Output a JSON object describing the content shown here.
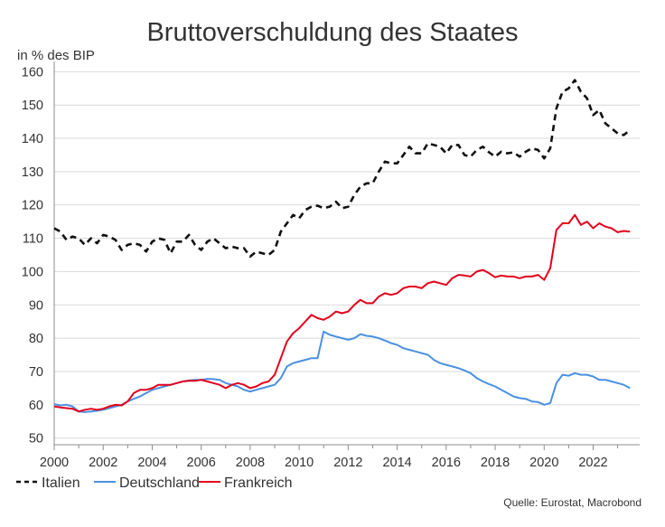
{
  "chart_data": {
    "type": "line",
    "title": "Bruttoverschuldung des Staates",
    "ylabel": "in % des BIP",
    "xlabel": "",
    "xlim": [
      2000,
      2023.9
    ],
    "ylim": [
      48,
      162
    ],
    "yticks": [
      50,
      60,
      70,
      80,
      90,
      100,
      110,
      120,
      130,
      140,
      150,
      160
    ],
    "xticks": [
      2000,
      2002,
      2004,
      2006,
      2008,
      2010,
      2012,
      2014,
      2016,
      2018,
      2020,
      2022
    ],
    "source": "Quelle: Eurostat, Macrobond",
    "series": [
      {
        "name": "Italien",
        "color": "#111111",
        "dash": "dashed",
        "x": [
          2000.0,
          2000.25,
          2000.5,
          2000.75,
          2001.0,
          2001.25,
          2001.5,
          2001.75,
          2002.0,
          2002.25,
          2002.5,
          2002.75,
          2003.0,
          2003.25,
          2003.5,
          2003.75,
          2004.0,
          2004.25,
          2004.5,
          2004.75,
          2005.0,
          2005.25,
          2005.5,
          2005.75,
          2006.0,
          2006.25,
          2006.5,
          2006.75,
          2007.0,
          2007.25,
          2007.5,
          2007.75,
          2008.0,
          2008.25,
          2008.5,
          2008.75,
          2009.0,
          2009.25,
          2009.5,
          2009.75,
          2010.0,
          2010.25,
          2010.5,
          2010.75,
          2011.0,
          2011.25,
          2011.5,
          2011.75,
          2012.0,
          2012.25,
          2012.5,
          2012.75,
          2013.0,
          2013.25,
          2013.5,
          2013.75,
          2014.0,
          2014.25,
          2014.5,
          2014.75,
          2015.0,
          2015.25,
          2015.5,
          2015.75,
          2016.0,
          2016.25,
          2016.5,
          2016.75,
          2017.0,
          2017.25,
          2017.5,
          2017.75,
          2018.0,
          2018.25,
          2018.5,
          2018.75,
          2019.0,
          2019.25,
          2019.5,
          2019.75,
          2020.0,
          2020.25,
          2020.5,
          2020.75,
          2021.0,
          2021.25,
          2021.5,
          2021.75,
          2022.0,
          2022.25,
          2022.5,
          2022.75,
          2023.0,
          2023.25,
          2023.5
        ],
        "values": [
          113,
          112,
          109.5,
          110.5,
          110,
          108,
          110,
          108.5,
          111,
          110.5,
          109.5,
          106.5,
          108,
          108.5,
          108,
          106,
          109,
          110,
          109.5,
          105.5,
          109,
          109,
          111,
          108,
          106.5,
          109,
          110,
          108.5,
          107,
          107.5,
          107,
          107,
          104.5,
          106,
          105.5,
          105,
          106.5,
          112,
          114.5,
          117,
          116,
          118.5,
          119.5,
          119.8,
          119,
          119.5,
          121,
          119,
          119.5,
          123,
          125.5,
          126.5,
          126.5,
          130,
          133,
          132.5,
          132.5,
          135,
          137.5,
          135.5,
          135.5,
          138.5,
          138,
          137.5,
          135.5,
          138,
          138,
          135,
          134.5,
          136.5,
          137.5,
          135.8,
          134.5,
          136,
          135.5,
          135.8,
          134.5,
          136,
          137,
          136.5,
          134,
          137,
          149,
          154,
          155,
          157.5,
          154,
          152,
          147,
          148.5,
          144.5,
          143,
          141.5,
          141,
          142.5
        ]
      },
      {
        "name": "Deutschland",
        "color": "#4a90e2",
        "dash": "solid",
        "x": [
          2000.0,
          2000.25,
          2000.5,
          2000.75,
          2001.0,
          2001.25,
          2001.5,
          2001.75,
          2002.0,
          2002.25,
          2002.5,
          2002.75,
          2003.0,
          2003.25,
          2003.5,
          2003.75,
          2004.0,
          2004.25,
          2004.5,
          2004.75,
          2005.0,
          2005.25,
          2005.5,
          2005.75,
          2006.0,
          2006.25,
          2006.5,
          2006.75,
          2007.0,
          2007.25,
          2007.5,
          2007.75,
          2008.0,
          2008.25,
          2008.5,
          2008.75,
          2009.0,
          2009.25,
          2009.5,
          2009.75,
          2010.0,
          2010.25,
          2010.5,
          2010.75,
          2011.0,
          2011.25,
          2011.5,
          2011.75,
          2012.0,
          2012.25,
          2012.5,
          2012.75,
          2013.0,
          2013.25,
          2013.5,
          2013.75,
          2014.0,
          2014.25,
          2014.5,
          2014.75,
          2015.0,
          2015.25,
          2015.5,
          2015.75,
          2016.0,
          2016.25,
          2016.5,
          2016.75,
          2017.0,
          2017.25,
          2017.5,
          2017.75,
          2018.0,
          2018.25,
          2018.5,
          2018.75,
          2019.0,
          2019.25,
          2019.5,
          2019.75,
          2020.0,
          2020.25,
          2020.5,
          2020.75,
          2021.0,
          2021.25,
          2021.5,
          2021.75,
          2022.0,
          2022.25,
          2022.5,
          2022.75,
          2023.0,
          2023.25,
          2023.5
        ],
        "values": [
          60.2,
          59.8,
          60,
          59.5,
          58,
          57.8,
          58,
          58.2,
          58.5,
          59,
          59.5,
          60,
          61,
          61.8,
          62.5,
          63.5,
          64.5,
          65,
          65.5,
          66,
          66.5,
          67,
          67.3,
          67.5,
          67.5,
          67.8,
          67.7,
          67.5,
          66.5,
          66,
          65.5,
          64.5,
          64,
          64.5,
          65,
          65.5,
          66,
          68,
          71.5,
          72.5,
          73,
          73.5,
          74,
          74,
          82,
          81,
          80.5,
          80,
          79.5,
          80,
          81.2,
          80.7,
          80.5,
          80,
          79.3,
          78.5,
          78,
          77,
          76.5,
          76,
          75.5,
          75,
          73.5,
          72.5,
          72,
          71.5,
          71,
          70.3,
          69.5,
          68,
          67,
          66.2,
          65.5,
          64.5,
          63.5,
          62.5,
          62,
          61.8,
          61,
          60.8,
          60,
          60.5,
          66.5,
          69,
          68.7,
          69.5,
          69,
          69,
          68.5,
          67.5,
          67.5,
          67,
          66.5,
          66,
          65
        ]
      },
      {
        "name": "Frankreich",
        "color": "#e3001b",
        "dash": "solid",
        "x": [
          2000.0,
          2000.25,
          2000.5,
          2000.75,
          2001.0,
          2001.25,
          2001.5,
          2001.75,
          2002.0,
          2002.25,
          2002.5,
          2002.75,
          2003.0,
          2003.25,
          2003.5,
          2003.75,
          2004.0,
          2004.25,
          2004.5,
          2004.75,
          2005.0,
          2005.25,
          2005.5,
          2005.75,
          2006.0,
          2006.25,
          2006.5,
          2006.75,
          2007.0,
          2007.25,
          2007.5,
          2007.75,
          2008.0,
          2008.25,
          2008.5,
          2008.75,
          2009.0,
          2009.25,
          2009.5,
          2009.75,
          2010.0,
          2010.25,
          2010.5,
          2010.75,
          2011.0,
          2011.25,
          2011.5,
          2011.75,
          2012.0,
          2012.25,
          2012.5,
          2012.75,
          2013.0,
          2013.25,
          2013.5,
          2013.75,
          2014.0,
          2014.25,
          2014.5,
          2014.75,
          2015.0,
          2015.25,
          2015.5,
          2015.75,
          2016.0,
          2016.25,
          2016.5,
          2016.75,
          2017.0,
          2017.25,
          2017.5,
          2017.75,
          2018.0,
          2018.25,
          2018.5,
          2018.75,
          2019.0,
          2019.25,
          2019.5,
          2019.75,
          2020.0,
          2020.25,
          2020.5,
          2020.75,
          2021.0,
          2021.25,
          2021.5,
          2021.75,
          2022.0,
          2022.25,
          2022.5,
          2022.75,
          2023.0,
          2023.25,
          2023.5
        ],
        "values": [
          59.5,
          59.2,
          59,
          58.8,
          58,
          58.5,
          58.8,
          58.5,
          58.8,
          59.5,
          60,
          59.8,
          61,
          63.5,
          64.5,
          64.5,
          65,
          66,
          66,
          66,
          66.5,
          67,
          67.2,
          67.2,
          67.5,
          67,
          66.5,
          66,
          65,
          66,
          66.5,
          66,
          65,
          65.5,
          66.5,
          67,
          69,
          74,
          79,
          81.5,
          83,
          85,
          87,
          86,
          85.5,
          86.5,
          88,
          87.5,
          88,
          90,
          91.5,
          90.5,
          90.5,
          92.5,
          93.5,
          93,
          93.5,
          95,
          95.5,
          95.5,
          95,
          96.5,
          97,
          96.5,
          96,
          98,
          99,
          98.8,
          98.5,
          100,
          100.5,
          99.5,
          98.3,
          98.8,
          98.5,
          98.5,
          98,
          98.5,
          98.5,
          99,
          97.5,
          101,
          112.5,
          114.5,
          114.5,
          117,
          114,
          115,
          113,
          114.5,
          113.5,
          113,
          111.8,
          112.2,
          112
        ]
      }
    ]
  }
}
